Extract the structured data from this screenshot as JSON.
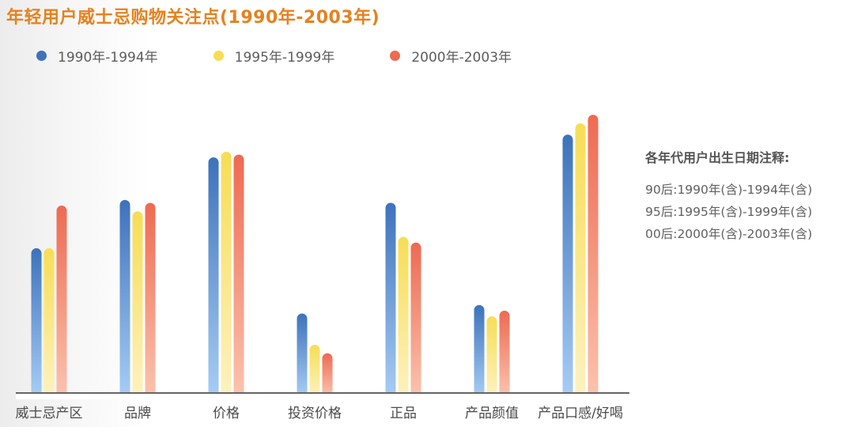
{
  "colors": {
    "title": "#e5821f",
    "series": [
      {
        "top": "#3d72bb",
        "bottom": "#a7cdf5"
      },
      {
        "top": "#f7dd55",
        "bottom": "#fdf2c0"
      },
      {
        "top": "#ee6a52",
        "bottom": "#fbc3ae"
      }
    ],
    "axis": "#666666"
  },
  "chart_data": {
    "type": "bar",
    "title": "年轻用户威士忌购物关注点(1990年-2003年)",
    "categories": [
      "威士忌产区",
      "品牌",
      "价格",
      "投资价格",
      "正品",
      "产品颜值",
      "产品口感/好喝"
    ],
    "series": [
      {
        "name": "1990年-1994年",
        "values": [
          51,
          68,
          83,
          28,
          67,
          31,
          91
        ]
      },
      {
        "name": "1995年-1999年",
        "values": [
          51,
          64,
          85,
          17,
          55,
          27,
          95
        ]
      },
      {
        "name": "2000年-2003年",
        "values": [
          66,
          67,
          84,
          14,
          53,
          29,
          98
        ]
      }
    ],
    "ylim": [
      0,
      100
    ],
    "grid": false,
    "legend_position": "top-left"
  },
  "notes": {
    "title": "各年代用户出生日期注释:",
    "lines": [
      "90后:1990年(含)-1994年(含)",
      "95后:1995年(含)-1999年(含)",
      "00后:2000年(含)-2003年(含)"
    ]
  }
}
